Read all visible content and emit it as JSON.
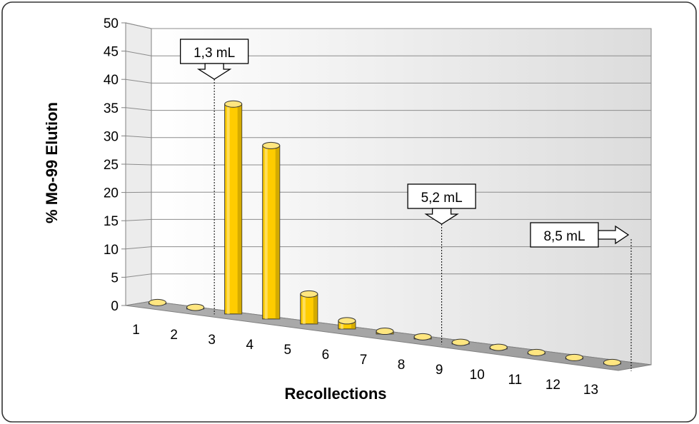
{
  "chart_data": {
    "type": "bar",
    "title": "",
    "xlabel": "Recollections",
    "ylabel": "% Mo-99 Elution",
    "ylim": [
      0,
      50
    ],
    "yticks": [
      "0",
      "5",
      "10",
      "15",
      "20",
      "25",
      "30",
      "35",
      "40",
      "45",
      "50"
    ],
    "categories": [
      "1",
      "2",
      "3",
      "4",
      "5",
      "6",
      "7",
      "8",
      "9",
      "10",
      "11",
      "12",
      "13"
    ],
    "values": [
      0.2,
      0.3,
      38.5,
      31.8,
      5.5,
      1.5,
      0.5,
      0.4,
      0.3,
      0.3,
      0.2,
      0.2,
      0.2
    ],
    "grid": true,
    "legend": "none",
    "annotations": [
      {
        "label": "1,3 mL",
        "between": [
          "2",
          "3"
        ],
        "arrow": "down"
      },
      {
        "label": "5,2 mL",
        "between": [
          "8",
          "9"
        ],
        "arrow": "down"
      },
      {
        "label": "8,5 mL",
        "between": [
          "13",
          "end"
        ],
        "arrow": "right"
      }
    ],
    "colors": {
      "bar": "#FFCC00",
      "bar_dark": "#B38F00",
      "bar_light": "#FFE680",
      "grid": "#808080",
      "frame": "#333333"
    }
  }
}
